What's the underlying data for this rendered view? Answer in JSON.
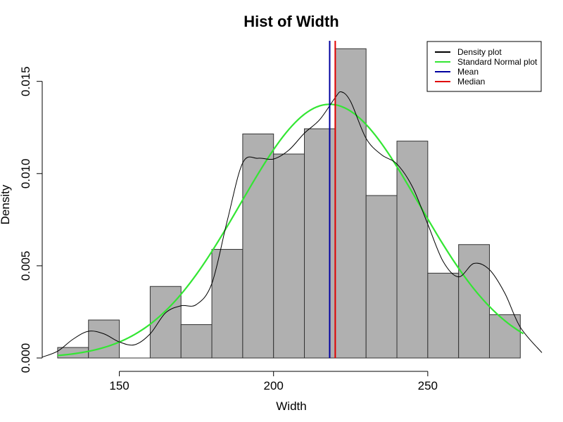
{
  "chart_data": {
    "type": "bar",
    "subtype": "histogram-with-density",
    "title": "Hist of Width",
    "xlabel": "Width",
    "ylabel": "Density",
    "xlim": [
      125,
      287
    ],
    "ylim": [
      0,
      0.0172
    ],
    "x_ticks": [
      150,
      200,
      250
    ],
    "y_ticks": [
      0.0,
      0.005,
      0.01,
      0.015
    ],
    "y_tick_labels": [
      "0.000",
      "0.005",
      "0.010",
      "0.015"
    ],
    "bins": [
      {
        "start": 130,
        "end": 140,
        "density": 0.00057
      },
      {
        "start": 140,
        "end": 150,
        "density": 0.00206
      },
      {
        "start": 150,
        "end": 160,
        "density": 0.0
      },
      {
        "start": 160,
        "end": 170,
        "density": 0.00388
      },
      {
        "start": 170,
        "end": 180,
        "density": 0.00181
      },
      {
        "start": 180,
        "end": 190,
        "density": 0.00589
      },
      {
        "start": 190,
        "end": 200,
        "density": 0.01215
      },
      {
        "start": 200,
        "end": 210,
        "density": 0.01106
      },
      {
        "start": 210,
        "end": 220,
        "density": 0.01243
      },
      {
        "start": 220,
        "end": 230,
        "density": 0.01677
      },
      {
        "start": 230,
        "end": 240,
        "density": 0.00881
      },
      {
        "start": 240,
        "end": 250,
        "density": 0.01176
      },
      {
        "start": 250,
        "end": 260,
        "density": 0.0046
      },
      {
        "start": 260,
        "end": 270,
        "density": 0.00615
      },
      {
        "start": 270,
        "end": 280,
        "density": 0.00235
      }
    ],
    "series": [
      {
        "name": "Density plot",
        "type": "line",
        "x": [
          125,
          130,
          135,
          140,
          145,
          150,
          155,
          160,
          165,
          170,
          175,
          180,
          185,
          190,
          195,
          200,
          205,
          210,
          215,
          220,
          222,
          225,
          230,
          235,
          240,
          245,
          250,
          255,
          260,
          265,
          270,
          275,
          280,
          287
        ],
        "y": [
          5e-05,
          0.00037,
          0.00102,
          0.00145,
          0.00131,
          0.00087,
          0.00072,
          0.00131,
          0.00245,
          0.00283,
          0.0029,
          0.00404,
          0.00745,
          0.01058,
          0.01083,
          0.01079,
          0.01128,
          0.01219,
          0.01293,
          0.01412,
          0.01443,
          0.0139,
          0.01191,
          0.01102,
          0.01052,
          0.00929,
          0.00726,
          0.00523,
          0.0044,
          0.00513,
          0.00479,
          0.00351,
          0.00167,
          0.00029
        ]
      },
      {
        "name": "Standard Normal plot",
        "type": "line",
        "mean": 218.2,
        "sd": 29.0,
        "x_range": [
          130,
          281
        ]
      }
    ],
    "vlines": [
      {
        "name": "Mean",
        "x": 218.2
      },
      {
        "name": "Median",
        "x": 220.0
      }
    ],
    "legend": {
      "position": "top-right",
      "entries": [
        {
          "label": "Density plot",
          "color": "#000000"
        },
        {
          "label": "Standard Normal plot",
          "color": "#33e633"
        },
        {
          "label": "Mean",
          "color": "#0000a0"
        },
        {
          "label": "Median",
          "color": "#e00000"
        }
      ]
    },
    "colors": {
      "bar_fill": "#b0b0b0",
      "bar_stroke": "#333333",
      "density": "#000000",
      "normal": "#33e633",
      "mean": "#0000a0",
      "median": "#e00000"
    }
  }
}
